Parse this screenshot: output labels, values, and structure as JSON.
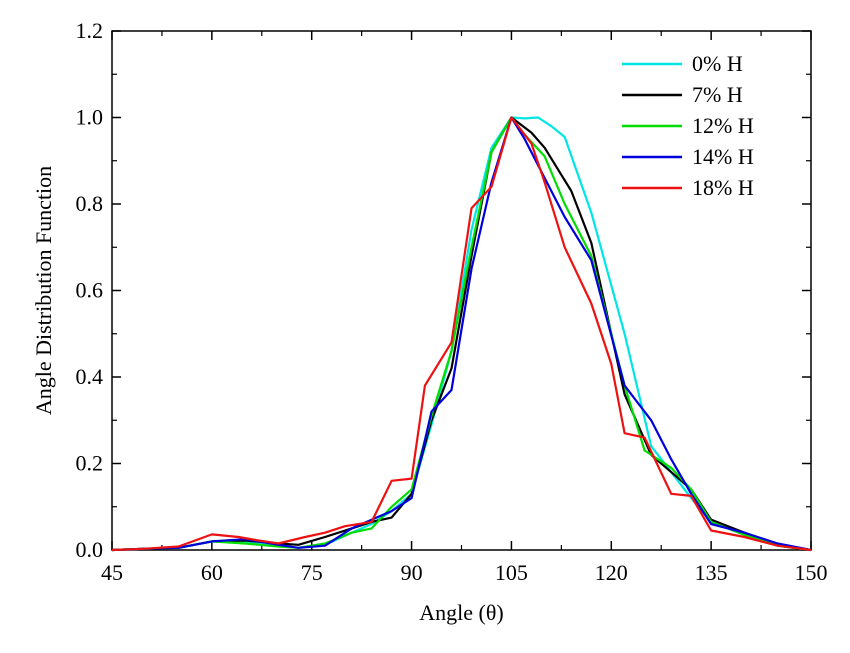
{
  "chart_data": {
    "type": "line",
    "title": "",
    "xlabel": "Angle (θ)",
    "ylabel": "Angle Distribution Function",
    "xlim": [
      45,
      150
    ],
    "ylim": [
      0,
      1.2
    ],
    "x_ticks": [
      "45",
      "60",
      "75",
      "90",
      "105",
      "120",
      "135",
      "150"
    ],
    "y_ticks": [
      "0.0",
      "0.2",
      "0.4",
      "0.6",
      "0.8",
      "1.0",
      "1.2"
    ],
    "grid": false,
    "legend_position": "top-right",
    "series": [
      {
        "name": "0% H",
        "color": "#00e5e5",
        "x": [
          45,
          50,
          55,
          60,
          65,
          70,
          73,
          77,
          81,
          84,
          87,
          90,
          93,
          96,
          99,
          102,
          105,
          107,
          109,
          111,
          113,
          117,
          122,
          126,
          129,
          132,
          135,
          140,
          145,
          150
        ],
        "y": [
          0,
          0.003,
          0.005,
          0.02,
          0.018,
          0.01,
          0.005,
          0.012,
          0.04,
          0.06,
          0.09,
          0.13,
          0.29,
          0.46,
          0.74,
          0.93,
          1.0,
          0.998,
          1.0,
          0.98,
          0.955,
          0.78,
          0.5,
          0.24,
          0.18,
          0.12,
          0.065,
          0.035,
          0.01,
          0
        ]
      },
      {
        "name": "7% H",
        "color": "#000000",
        "x": [
          45,
          50,
          55,
          60,
          65,
          70,
          73,
          77,
          81,
          84,
          87,
          90,
          93,
          96,
          99,
          102,
          105,
          108,
          110,
          112,
          114,
          117,
          122,
          126,
          129,
          132,
          135,
          140,
          145,
          150
        ],
        "y": [
          0,
          0.003,
          0.005,
          0.02,
          0.022,
          0.015,
          0.012,
          0.03,
          0.05,
          0.065,
          0.075,
          0.13,
          0.3,
          0.42,
          0.68,
          0.92,
          1.0,
          0.965,
          0.93,
          0.88,
          0.83,
          0.71,
          0.36,
          0.22,
          0.18,
          0.14,
          0.07,
          0.04,
          0.01,
          0
        ]
      },
      {
        "name": "12% H",
        "color": "#00dd00",
        "x": [
          45,
          50,
          55,
          60,
          65,
          70,
          73,
          77,
          81,
          84,
          87,
          90,
          93,
          96,
          99,
          102,
          105,
          107,
          110,
          113,
          117,
          122,
          125,
          129,
          132,
          135,
          140,
          145,
          150
        ],
        "y": [
          0,
          0.003,
          0.005,
          0.02,
          0.015,
          0.008,
          0.005,
          0.015,
          0.04,
          0.05,
          0.1,
          0.14,
          0.31,
          0.46,
          0.7,
          0.92,
          1.0,
          0.96,
          0.91,
          0.8,
          0.68,
          0.38,
          0.23,
          0.19,
          0.14,
          0.065,
          0.035,
          0.01,
          0
        ]
      },
      {
        "name": "14% H",
        "color": "#0000dd",
        "x": [
          45,
          50,
          55,
          60,
          65,
          70,
          73,
          77,
          81,
          84,
          87,
          90,
          93,
          96,
          99,
          102,
          105,
          107,
          110,
          113,
          117,
          122,
          126,
          129,
          132,
          135,
          140,
          145,
          150
        ],
        "y": [
          0,
          0.003,
          0.005,
          0.02,
          0.025,
          0.012,
          0.005,
          0.01,
          0.05,
          0.07,
          0.09,
          0.12,
          0.32,
          0.37,
          0.65,
          0.85,
          1.0,
          0.95,
          0.86,
          0.77,
          0.67,
          0.38,
          0.3,
          0.21,
          0.13,
          0.06,
          0.04,
          0.015,
          0
        ]
      },
      {
        "name": "18% H",
        "color": "#ee1111",
        "x": [
          45,
          50,
          55,
          60,
          64,
          67,
          70,
          74,
          77,
          80,
          84,
          87,
          90,
          92,
          96,
          99,
          102,
          105,
          108,
          110,
          113,
          117,
          120,
          122,
          125,
          129,
          132,
          135,
          140,
          145,
          150
        ],
        "y": [
          0,
          0.003,
          0.008,
          0.036,
          0.03,
          0.022,
          0.015,
          0.03,
          0.04,
          0.055,
          0.065,
          0.16,
          0.165,
          0.38,
          0.48,
          0.79,
          0.84,
          1.0,
          0.94,
          0.85,
          0.7,
          0.57,
          0.43,
          0.27,
          0.26,
          0.13,
          0.125,
          0.045,
          0.03,
          0.01,
          0
        ]
      }
    ]
  }
}
